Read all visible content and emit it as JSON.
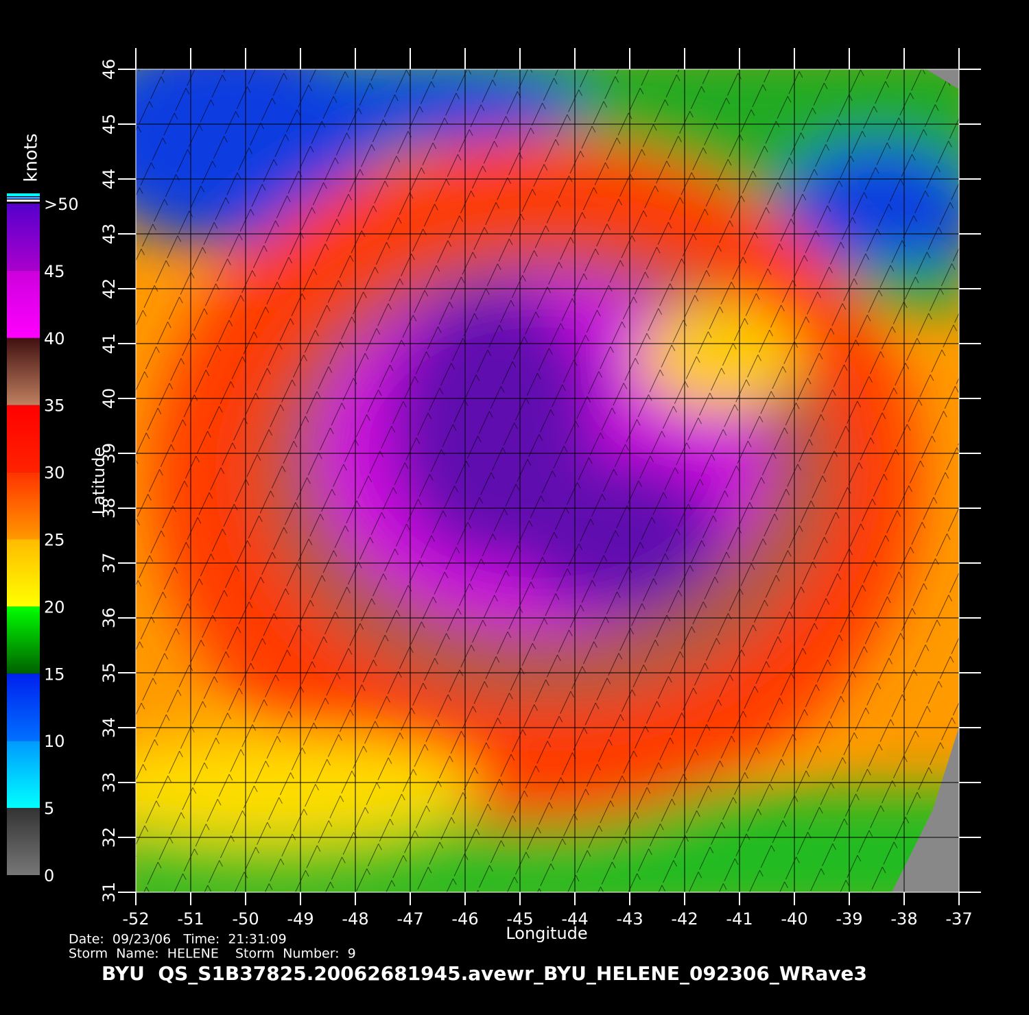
{
  "chart_data": {
    "type": "heatmap",
    "title": "BYU  QS_S1B37825.20062681945.avewr_BYU_HELENE_092306_WRave3",
    "notes": [
      "Date:  09/23/06   Time:  21:31:09",
      "Storm  Name:  HELENE    Storm  Number:  9"
    ],
    "xlabel": "Longitude",
    "ylabel": "Latitude",
    "xlim": [
      -52,
      -37
    ],
    "xticks": [
      -52,
      -51,
      -50,
      -49,
      -48,
      -47,
      -46,
      -45,
      -44,
      -43,
      -42,
      -41,
      -40,
      -39,
      -38,
      -37
    ],
    "ylim": [
      31,
      46
    ],
    "yticks": [
      31,
      32,
      33,
      34,
      35,
      36,
      37,
      38,
      39,
      40,
      41,
      42,
      43,
      44,
      45,
      46
    ],
    "grid": true,
    "colorbar": {
      "label": "knots",
      "lim": [
        0,
        50
      ],
      "ticks": [
        0,
        5,
        10,
        15,
        20,
        25,
        30,
        35,
        40,
        45,
        {
          "value": 50,
          "label": ">50"
        }
      ],
      "colors": [
        [
          "#777777",
          "#333333"
        ],
        [
          "#00ffff",
          "#0099ff"
        ],
        [
          "#0070ff",
          "#0020ee"
        ],
        [
          "#006000",
          "#00ff00"
        ],
        [
          "#ffff00",
          "#ffbb00"
        ],
        [
          "#ff9900",
          "#ff3300"
        ],
        [
          "#ff2200",
          "#ff0000"
        ],
        [
          "#c08060",
          "#401010"
        ],
        [
          "#ff00ff",
          "#cc00dd"
        ],
        [
          "#aa00cc",
          "#5500cc"
        ]
      ]
    }
  }
}
